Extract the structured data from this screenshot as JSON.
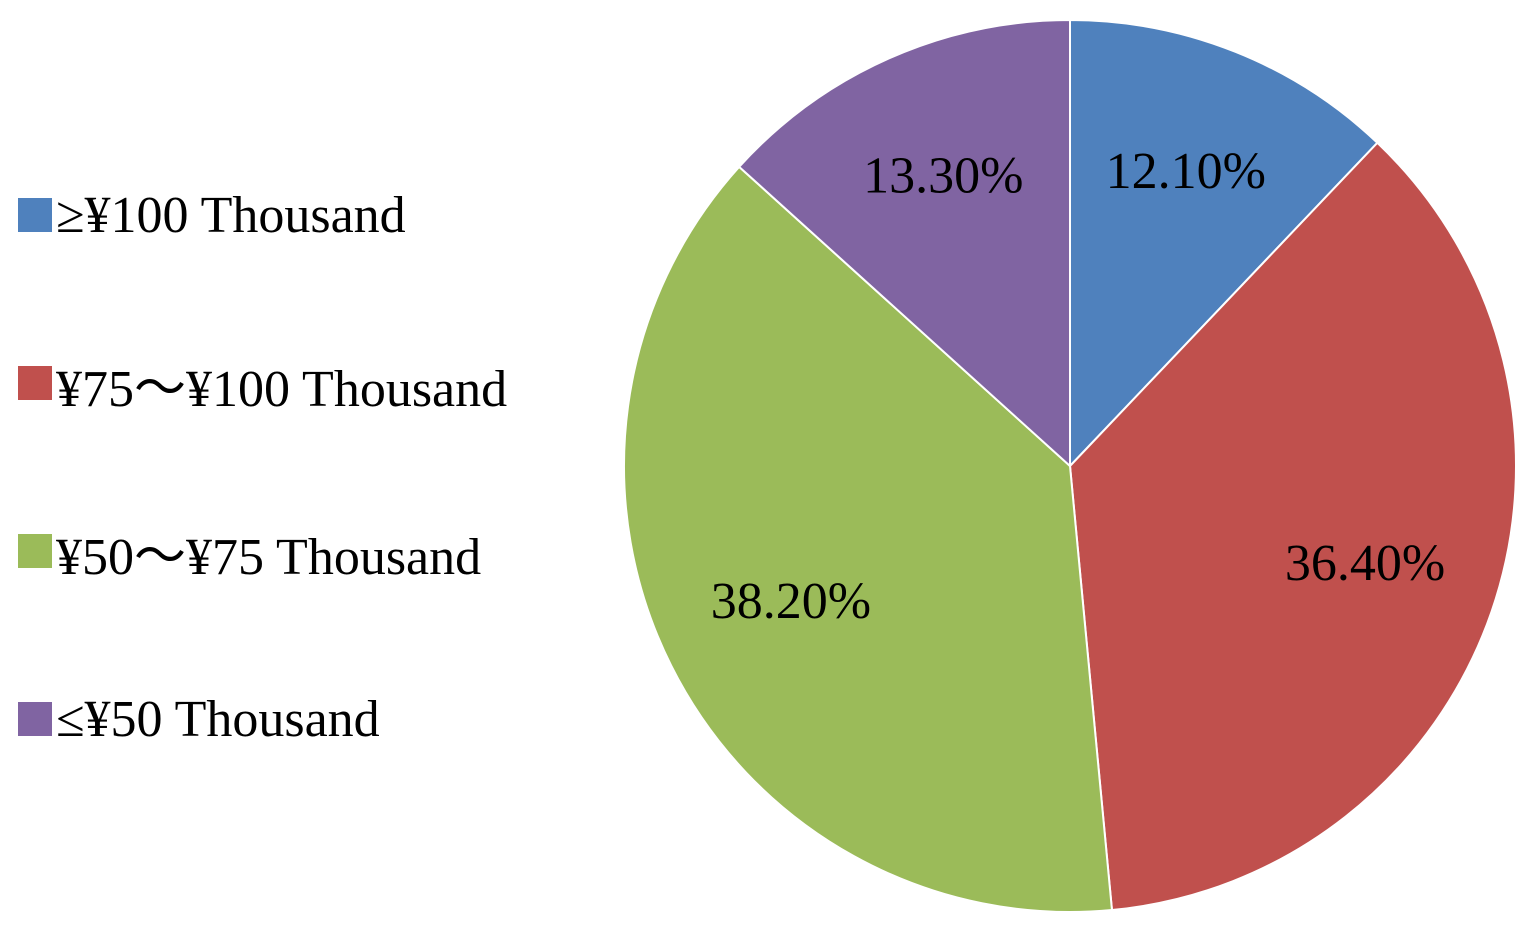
{
  "chart_data": {
    "type": "pie",
    "title": "",
    "slices": [
      {
        "label": "≥¥100 Thousand",
        "value": 12.1,
        "display": "12.10%",
        "color": "#4F81BD"
      },
      {
        "label": "¥75～¥100 Thousand",
        "value": 36.4,
        "display": "36.40%",
        "color": "#C0504D"
      },
      {
        "label": "¥50～¥75 Thousand",
        "value": 38.2,
        "display": "38.20%",
        "color": "#9BBB59"
      },
      {
        "label": "≤¥50 Thousand",
        "value": 13.3,
        "display": "13.30%",
        "color": "#8064A2"
      }
    ],
    "legend_position": "left",
    "start_angle": "12 o'clock",
    "direction": "clockwise"
  }
}
